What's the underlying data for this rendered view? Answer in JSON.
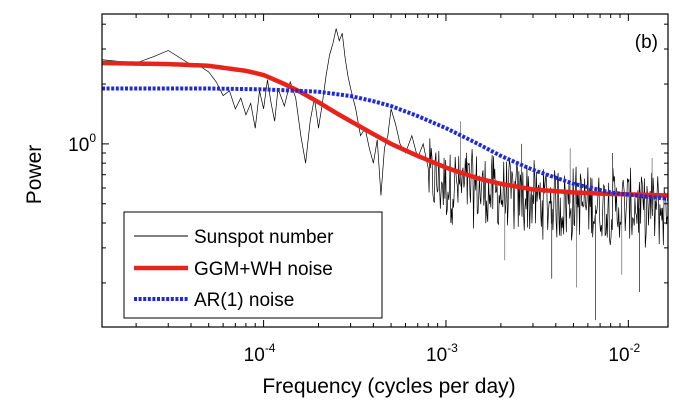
{
  "chart_data": {
    "type": "line",
    "panel_label": "(b)",
    "xlabel": "Frequency (cycles per day)",
    "ylabel": "Power",
    "xscale": "log",
    "yscale": "log",
    "xlim": [
      1.3e-05,
      0.0165
    ],
    "ylim": [
      0.12,
      4.5
    ],
    "grid": false,
    "legend_position": "bottom-left",
    "x_ticks": [
      {
        "base": "10",
        "exp": "-4",
        "value": 0.0001
      },
      {
        "base": "10",
        "exp": "-3",
        "value": 0.001
      },
      {
        "base": "10",
        "exp": "-2",
        "value": 0.01
      }
    ],
    "y_ticks": [
      {
        "base": "10",
        "exp": "0",
        "value": 1
      }
    ],
    "colors": {
      "sunspot": "#000000",
      "ggm": "#e8231b",
      "ar1": "#1f2ad6"
    },
    "series": [
      {
        "name": "Sunspot number",
        "kind": "noisy_spectrum",
        "color": "#000000",
        "points": [
          [
            1.3e-05,
            2.65
          ],
          [
            1.6e-05,
            2.6
          ],
          [
            2e-05,
            2.55
          ],
          [
            2.5e-05,
            2.75
          ],
          [
            3e-05,
            2.95
          ],
          [
            3.5e-05,
            2.7
          ],
          [
            4e-05,
            2.5
          ],
          [
            4.5e-05,
            2.45
          ],
          [
            5e-05,
            2.3
          ],
          [
            5.5e-05,
            2.05
          ],
          [
            6e-05,
            1.75
          ],
          [
            6.5e-05,
            1.85
          ],
          [
            7e-05,
            1.5
          ],
          [
            7.5e-05,
            1.7
          ],
          [
            8e-05,
            1.4
          ],
          [
            8.5e-05,
            1.6
          ],
          [
            9e-05,
            1.2
          ],
          [
            9.5e-05,
            1.85
          ],
          [
            0.0001,
            1.5
          ],
          [
            0.000105,
            2.1
          ],
          [
            0.00011,
            1.6
          ],
          [
            0.000115,
            1.3
          ],
          [
            0.00012,
            1.9
          ],
          [
            0.00013,
            1.55
          ],
          [
            0.00014,
            2.05
          ],
          [
            0.00015,
            1.7
          ],
          [
            0.00016,
            1.1
          ],
          [
            0.00017,
            0.8
          ],
          [
            0.00018,
            1.3
          ],
          [
            0.00019,
            1.7
          ],
          [
            0.0002,
            1.2
          ],
          [
            0.00021,
            1.6
          ],
          [
            0.00022,
            2.2
          ],
          [
            0.00023,
            2.8
          ],
          [
            0.00024,
            3.2
          ],
          [
            0.00025,
            3.8
          ],
          [
            0.00026,
            3.3
          ],
          [
            0.00027,
            3.6
          ],
          [
            0.00028,
            2.7
          ],
          [
            0.00029,
            2.2
          ],
          [
            0.0003,
            1.9
          ],
          [
            0.00032,
            1.5
          ],
          [
            0.00034,
            1.1
          ],
          [
            0.00036,
            1.2
          ],
          [
            0.00038,
            0.95
          ],
          [
            0.0004,
            0.8
          ],
          [
            0.00042,
            1.05
          ],
          [
            0.00044,
            0.55
          ],
          [
            0.00046,
            0.95
          ],
          [
            0.00048,
            1.1
          ],
          [
            0.0005,
            1.5
          ],
          [
            0.00053,
            1.25
          ],
          [
            0.00056,
            1.0
          ],
          [
            0.0006,
            0.9
          ],
          [
            0.00065,
            1.1
          ],
          [
            0.0007,
            0.85
          ],
          [
            0.00075,
            1.0
          ],
          [
            0.0008,
            0.75
          ]
        ],
        "noise_band": {
          "x_start": 0.0008,
          "x_end": 0.0165,
          "upper": [
            [
              0.0008,
              1.05
            ],
            [
              0.002,
              0.85
            ],
            [
              0.005,
              0.78
            ],
            [
              0.0165,
              0.72
            ]
          ],
          "lower": [
            [
              0.0008,
              0.42
            ],
            [
              0.002,
              0.36
            ],
            [
              0.005,
              0.32
            ],
            [
              0.0165,
              0.3
            ]
          ],
          "outlier_low": [
            [
              0.0021,
              0.26
            ],
            [
              0.0038,
              0.21
            ],
            [
              0.0052,
              0.19
            ],
            [
              0.0066,
              0.13
            ],
            [
              0.0092,
              0.22
            ],
            [
              0.0115,
              0.18
            ]
          ],
          "outlier_high": [
            [
              0.0012,
              1.3
            ],
            [
              0.0026,
              1.0
            ],
            [
              0.0048,
              0.95
            ],
            [
              0.0082,
              0.9
            ],
            [
              0.0135,
              0.85
            ]
          ]
        }
      },
      {
        "name": "GGM+WH noise",
        "kind": "smooth",
        "color": "#e8231b",
        "points": [
          [
            1.3e-05,
            2.55
          ],
          [
            3e-05,
            2.52
          ],
          [
            5e-05,
            2.47
          ],
          [
            8e-05,
            2.33
          ],
          [
            0.0001,
            2.22
          ],
          [
            0.00013,
            2.0
          ],
          [
            0.00016,
            1.82
          ],
          [
            0.0002,
            1.62
          ],
          [
            0.00025,
            1.43
          ],
          [
            0.0003,
            1.3
          ],
          [
            0.0004,
            1.12
          ],
          [
            0.0005,
            1.0
          ],
          [
            0.0007,
            0.87
          ],
          [
            0.001,
            0.76
          ],
          [
            0.0015,
            0.67
          ],
          [
            0.002,
            0.63
          ],
          [
            0.003,
            0.59
          ],
          [
            0.005,
            0.57
          ],
          [
            0.008,
            0.56
          ],
          [
            0.012,
            0.555
          ],
          [
            0.0165,
            0.55
          ]
        ]
      },
      {
        "name": "AR(1) noise",
        "kind": "smooth",
        "color": "#1f2ad6",
        "points": [
          [
            1.3e-05,
            1.9
          ],
          [
            5e-05,
            1.9
          ],
          [
            0.0001,
            1.88
          ],
          [
            0.0002,
            1.83
          ],
          [
            0.0003,
            1.74
          ],
          [
            0.0004,
            1.64
          ],
          [
            0.0005,
            1.55
          ],
          [
            0.0007,
            1.38
          ],
          [
            0.001,
            1.2
          ],
          [
            0.0015,
            1.0
          ],
          [
            0.002,
            0.87
          ],
          [
            0.003,
            0.74
          ],
          [
            0.005,
            0.63
          ],
          [
            0.008,
            0.57
          ],
          [
            0.012,
            0.545
          ],
          [
            0.0165,
            0.53
          ]
        ]
      }
    ]
  }
}
